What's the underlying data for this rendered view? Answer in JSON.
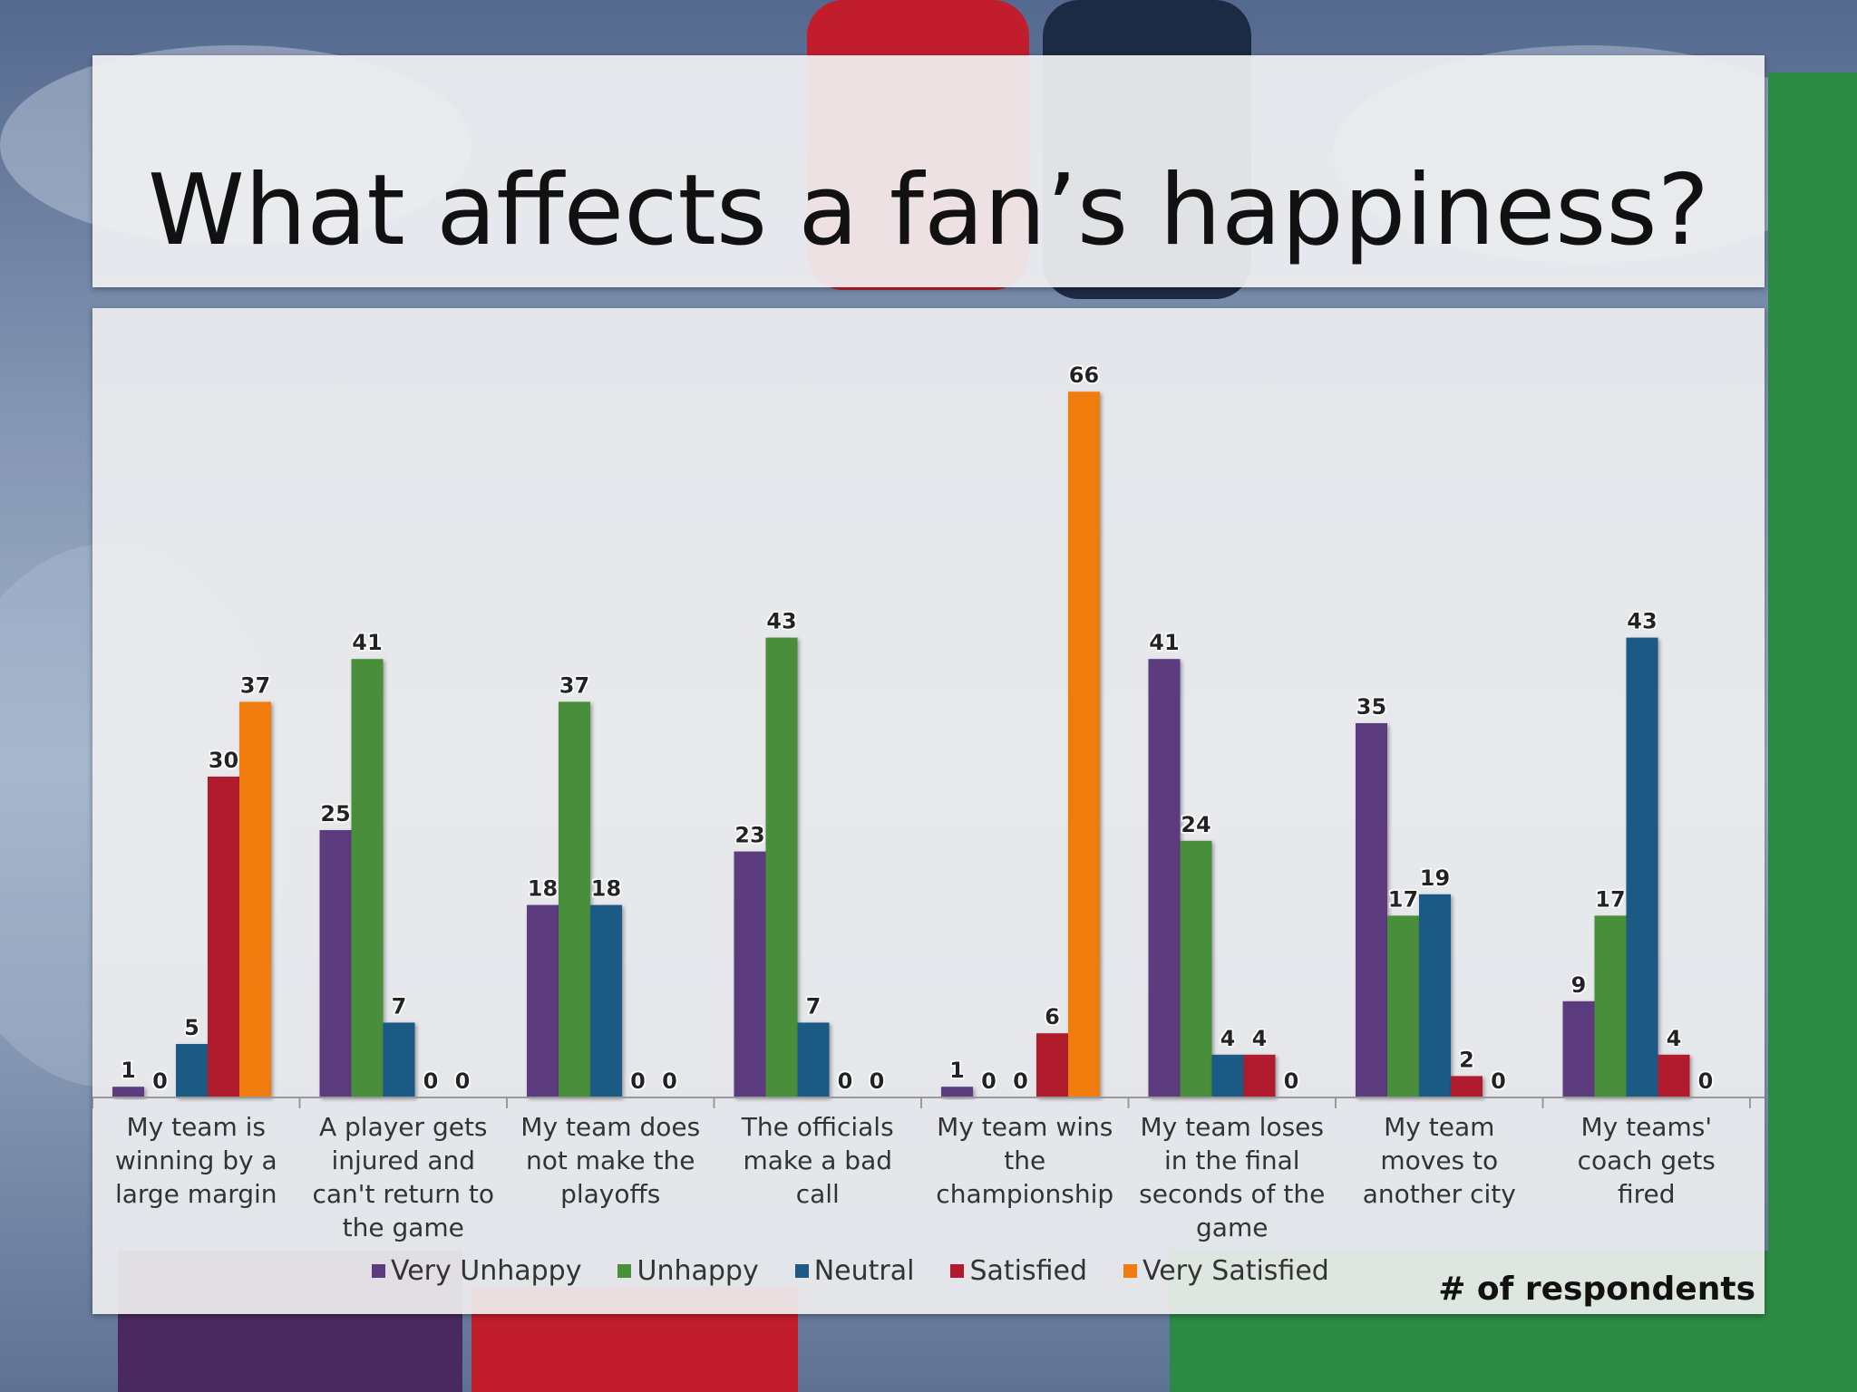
{
  "slide": {
    "title": "What affects a fan’s happiness?",
    "footnote": "# of respondents"
  },
  "colors": {
    "Very Unhappy": "#5c3b7e",
    "Unhappy": "#4a8f3a",
    "Neutral": "#1f5a86",
    "Satisfied": "#b01b2e",
    "Very Satisfied": "#f07c10"
  },
  "chart_data": {
    "type": "bar",
    "title": "",
    "xlabel": "",
    "ylabel": "",
    "ylim": [
      0,
      70
    ],
    "grid": false,
    "legend_position": "bottom",
    "categories": [
      "My team is winning by a large margin",
      "A player gets injured and can't return to the game",
      "My team does not make the playoffs",
      "The officials make a bad call",
      "My team wins the championship",
      "My team loses in the final seconds of the game",
      "My team moves to another city",
      "My teams' coach gets fired"
    ],
    "category_lines": [
      [
        "My team is",
        "winning by a",
        "large margin"
      ],
      [
        "A player gets",
        "injured and",
        "can't return to",
        "the game"
      ],
      [
        "My team does",
        "not make the",
        "playoffs"
      ],
      [
        "The officials",
        "make a bad",
        "call"
      ],
      [
        "My team wins",
        "the",
        "championship"
      ],
      [
        "My team loses",
        "in the final",
        "seconds of the",
        "game"
      ],
      [
        "My team",
        "moves to",
        "another city"
      ],
      [
        "My teams'",
        "coach gets",
        "fired"
      ]
    ],
    "series": [
      {
        "name": "Very Unhappy",
        "values": [
          1,
          25,
          18,
          23,
          1,
          41,
          35,
          9
        ]
      },
      {
        "name": "Unhappy",
        "values": [
          0,
          41,
          37,
          43,
          0,
          24,
          17,
          17
        ]
      },
      {
        "name": "Neutral",
        "values": [
          5,
          7,
          18,
          7,
          0,
          4,
          19,
          43
        ]
      },
      {
        "name": "Satisfied",
        "values": [
          30,
          0,
          0,
          0,
          6,
          4,
          2,
          4
        ]
      },
      {
        "name": "Very Satisfied",
        "values": [
          37,
          0,
          0,
          0,
          66,
          0,
          0,
          0
        ]
      }
    ]
  }
}
